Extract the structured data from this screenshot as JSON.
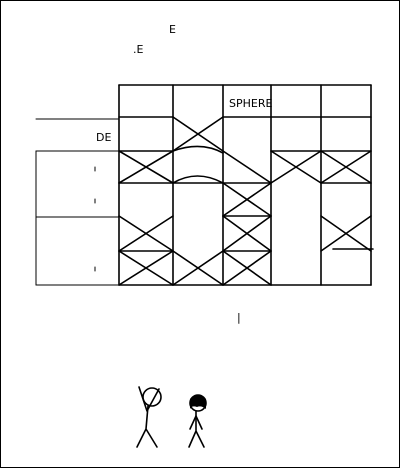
{
  "comic": {
    "top_fragment_a": "E",
    "top_fragment_b": ".E",
    "sphere_label": "SPHERE",
    "left_label": "DE",
    "mid_mark": "|"
  }
}
